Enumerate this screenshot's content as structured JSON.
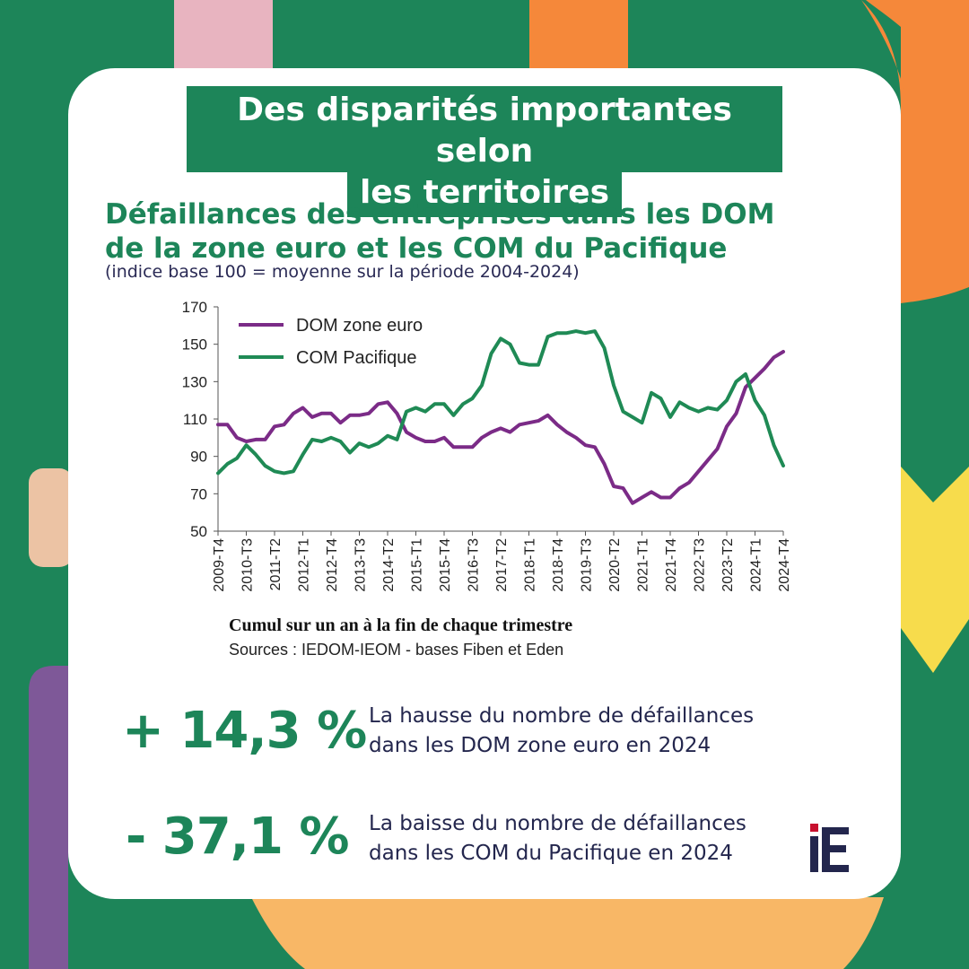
{
  "banner": {
    "line1": "Des disparités importantes selon",
    "line2": "les territoires"
  },
  "chart_title": {
    "line1": "Défaillances des entreprises dans les DOM",
    "line2": "de la zone euro et les COM du Pacifique"
  },
  "chart_subtitle": "(indice base 100 = moyenne sur la période 2004-2024)",
  "caption": "Cumul sur un an à la fin de chaque trimestre",
  "source": "Sources : IEDOM-IEOM - bases Fiben et Eden",
  "stats": [
    {
      "value": "+ 14,3 %",
      "line1": "La hausse du nombre de défaillances",
      "line2": "dans les DOM zone euro en 2024"
    },
    {
      "value": "- 37,1 %",
      "line1": "La baisse du nombre de défaillances",
      "line2": "dans les COM du Pacifique en 2024"
    }
  ],
  "logo": {
    "text": "iE",
    "color_main": "#23264d",
    "color_dot": "#c8102e"
  },
  "colors": {
    "green": "#1d8559",
    "card": "#ffffff",
    "dom_line": "#7b2b87",
    "com_line": "#1f8a55",
    "pink": "#e8b4c0",
    "orange": "#f5883a",
    "peach": "#ecc3a4",
    "yellow": "#f7dc4c",
    "purple": "#7e5898",
    "light_orange": "#f8b766"
  },
  "chart_data": {
    "type": "line",
    "title": "Défaillances des entreprises dans les DOM de la zone euro et les COM du Pacifique",
    "xlabel": "Cumul sur un an à la fin de chaque trimestre",
    "ylabel": "",
    "ylim": [
      50,
      170
    ],
    "yticks": [
      50,
      70,
      90,
      110,
      130,
      150,
      170
    ],
    "x_tick_labels": [
      "2009-T4",
      "2010-T3",
      "2011-T2",
      "2012-T1",
      "2012-T4",
      "2013-T3",
      "2014-T2",
      "2015-T1",
      "2015-T4",
      "2016-T3",
      "2017-T2",
      "2018-T1",
      "2018-T4",
      "2019-T3",
      "2020-T2",
      "2021-T1",
      "2021-T4",
      "2022-T3",
      "2023-T2",
      "2024-T1",
      "2024-T4"
    ],
    "legend_position": "top-left",
    "grid": false,
    "series": [
      {
        "name": "DOM zone euro",
        "color": "#7b2b87",
        "values": [
          107,
          107,
          100,
          98,
          99,
          99,
          106,
          107,
          113,
          116,
          111,
          113,
          113,
          108,
          112,
          112,
          113,
          118,
          119,
          113,
          103,
          100,
          98,
          98,
          100,
          95,
          95,
          95,
          100,
          103,
          105,
          103,
          107,
          108,
          109,
          112,
          107,
          103,
          100,
          96,
          95,
          86,
          74,
          73,
          65,
          68,
          71,
          68,
          68,
          73,
          76,
          82,
          88,
          94,
          106,
          113,
          127,
          132,
          137,
          143,
          146
        ]
      },
      {
        "name": "COM Pacifique",
        "color": "#1f8a55",
        "values": [
          81,
          86,
          89,
          96,
          91,
          85,
          82,
          81,
          82,
          91,
          99,
          98,
          100,
          98,
          92,
          97,
          95,
          97,
          101,
          99,
          114,
          116,
          114,
          118,
          118,
          112,
          118,
          121,
          128,
          145,
          153,
          150,
          140,
          139,
          139,
          154,
          156,
          156,
          157,
          156,
          157,
          148,
          128,
          114,
          111,
          108,
          124,
          121,
          111,
          119,
          116,
          114,
          116,
          115,
          120,
          130,
          134,
          120,
          112,
          96,
          85
        ]
      }
    ]
  }
}
